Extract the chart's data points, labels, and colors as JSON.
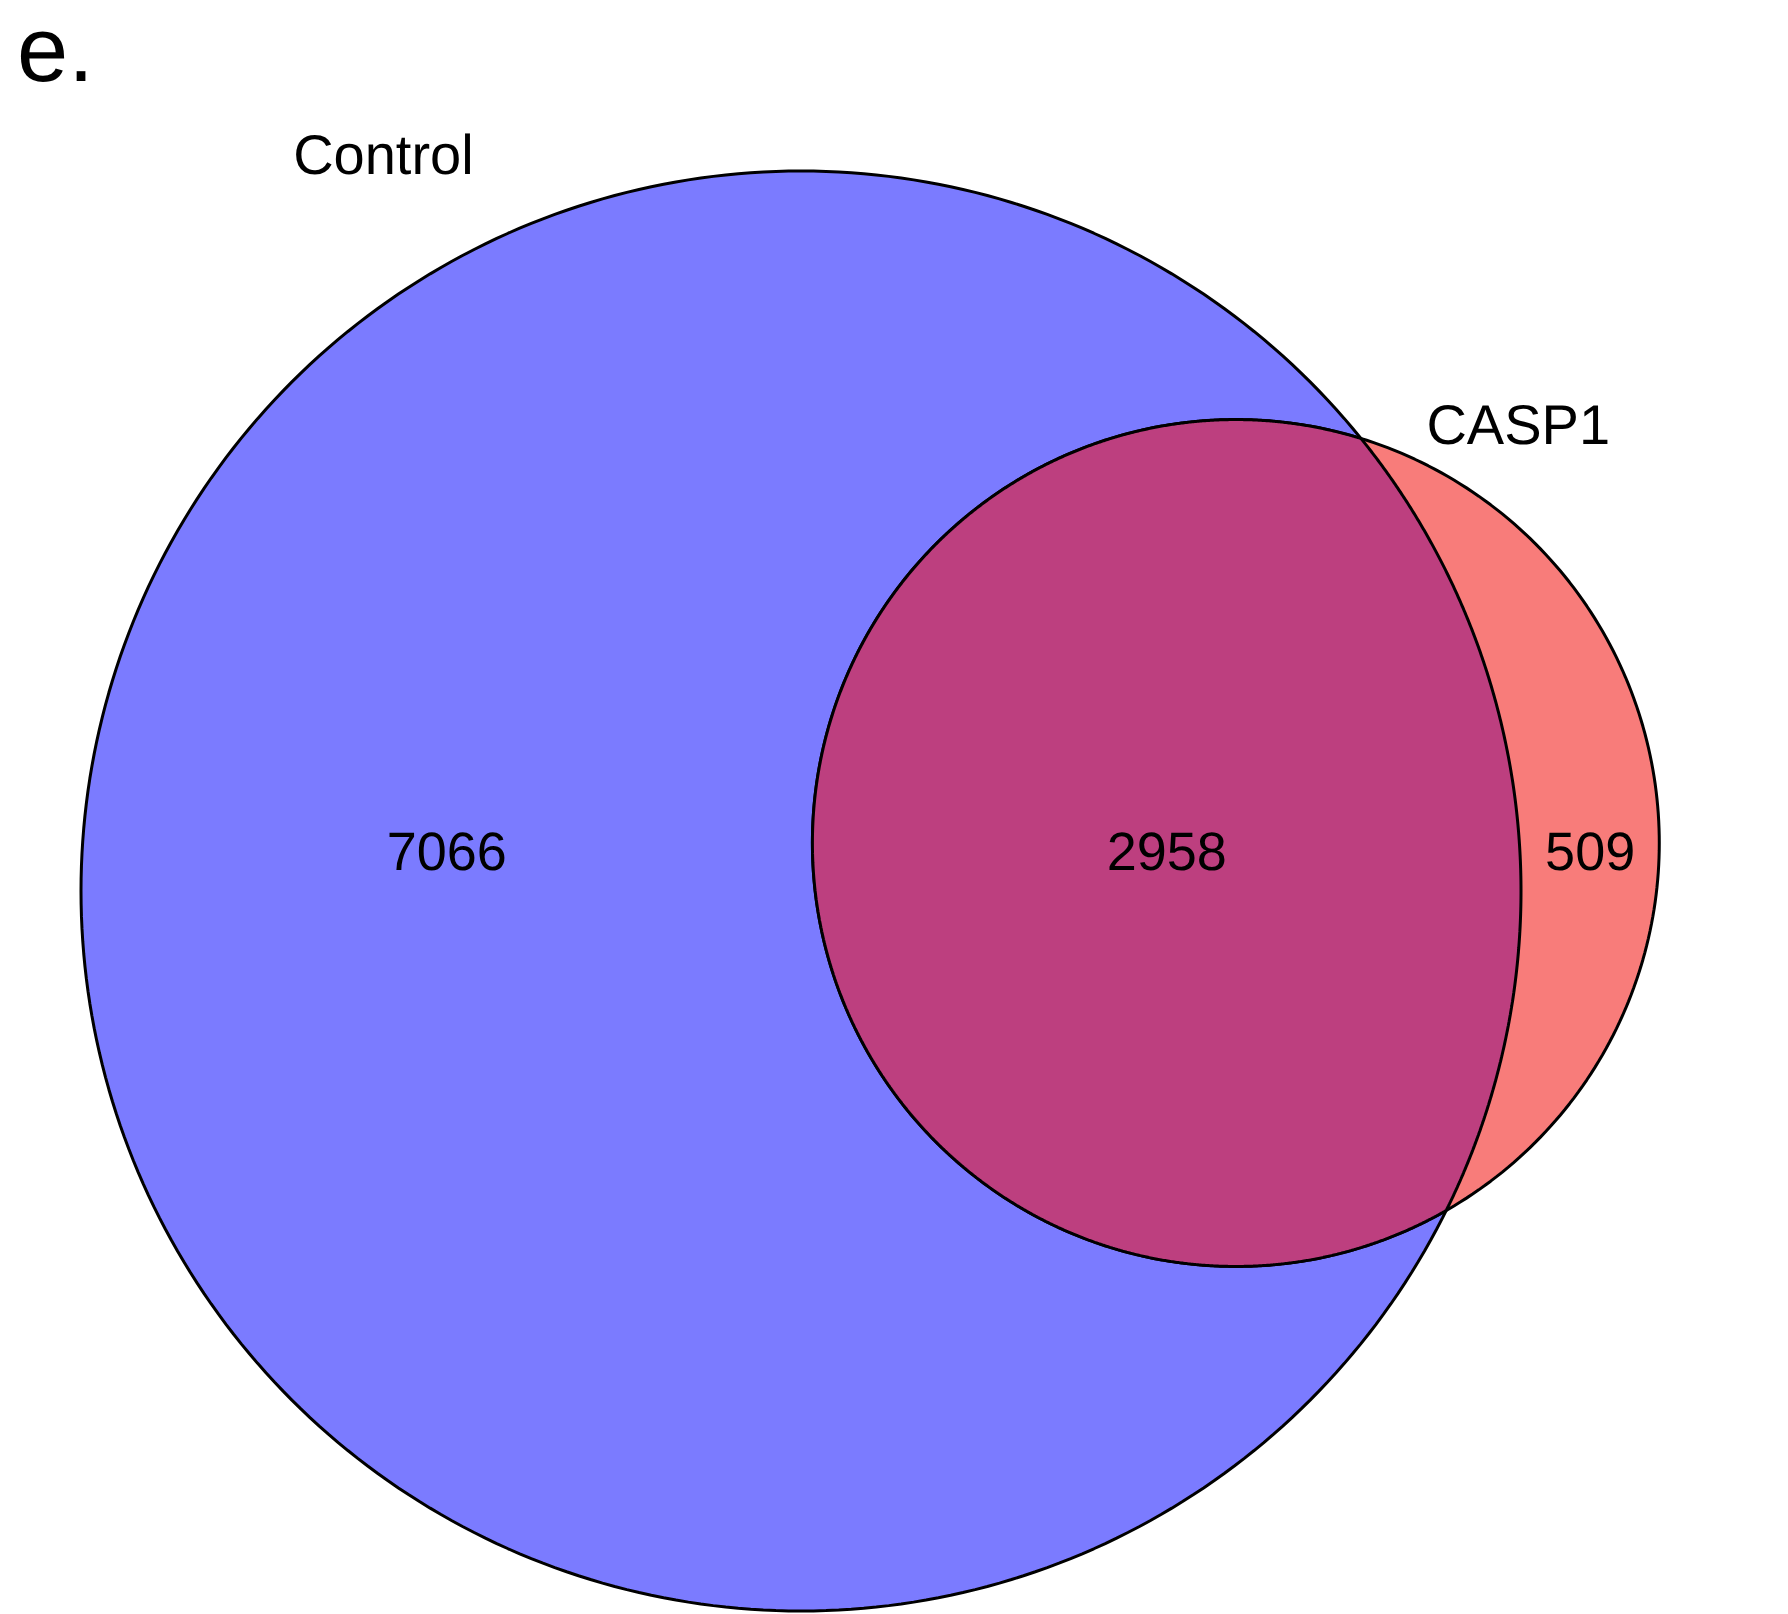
{
  "chart_data": {
    "type": "other",
    "title": "e.",
    "categories": [
      null,
      null,
      null
    ],
    "values": [
      7066,
      2958,
      509
    ],
    "data_labels": true,
    "colors": [
      "#7b7bff",
      "#bd3f7f",
      "#f87c7a"
    ],
    "annotations": [
      "Control",
      "CASP1"
    ]
  }
}
